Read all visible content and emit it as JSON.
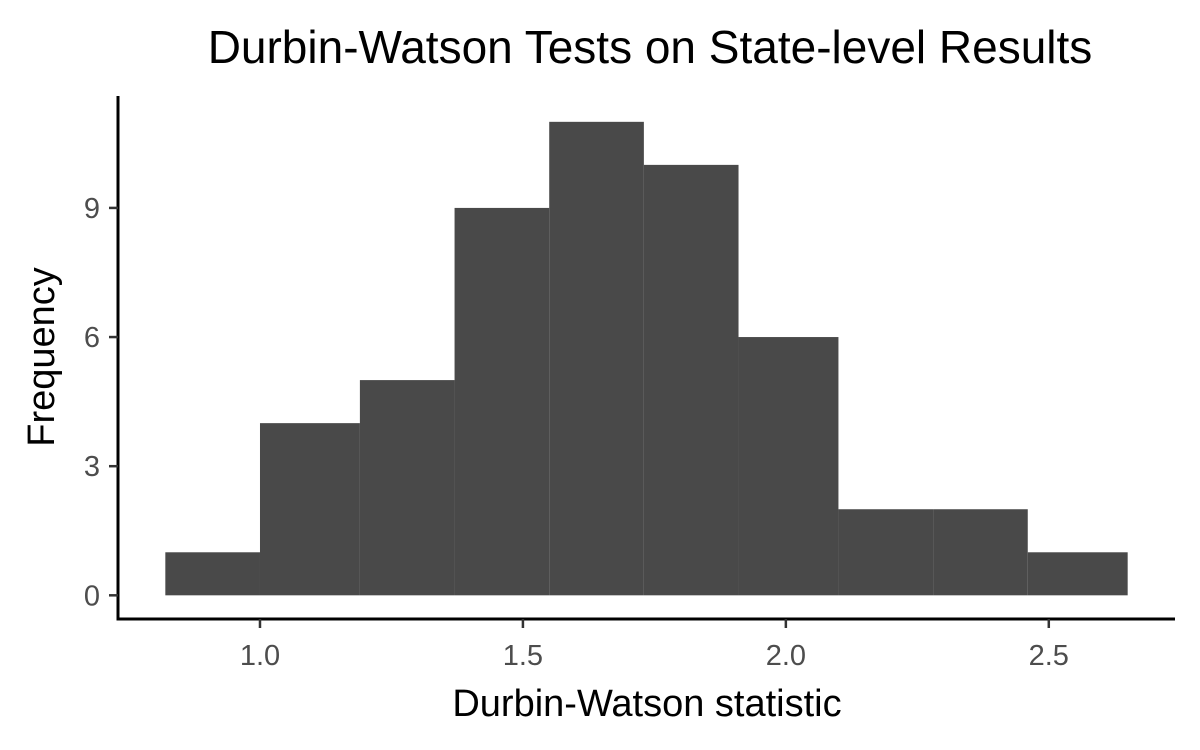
{
  "chart_data": {
    "type": "bar",
    "subtype": "histogram",
    "title": "Durbin-Watson Tests on State-level Results",
    "xlabel": "Durbin-Watson statistic",
    "ylabel": "Frequency",
    "bins": [
      {
        "x0": 0.82,
        "x1": 1.0,
        "count": 1
      },
      {
        "x0": 1.0,
        "x1": 1.19,
        "count": 4
      },
      {
        "x0": 1.19,
        "x1": 1.37,
        "count": 5
      },
      {
        "x0": 1.37,
        "x1": 1.55,
        "count": 9
      },
      {
        "x0": 1.55,
        "x1": 1.73,
        "count": 11
      },
      {
        "x0": 1.73,
        "x1": 1.91,
        "count": 10
      },
      {
        "x0": 1.91,
        "x1": 2.1,
        "count": 6
      },
      {
        "x0": 2.1,
        "x1": 2.28,
        "count": 2
      },
      {
        "x0": 2.28,
        "x1": 2.46,
        "count": 2
      },
      {
        "x0": 2.46,
        "x1": 2.65,
        "count": 1
      }
    ],
    "xlim": [
      0.73,
      2.74
    ],
    "ylim": [
      -0.55,
      11.6
    ],
    "x_ticks": [
      1.0,
      1.5,
      2.0,
      2.5
    ],
    "x_tick_labels": [
      "1.0",
      "1.5",
      "2.0",
      "2.5"
    ],
    "y_ticks": [
      0,
      3,
      6,
      9
    ],
    "y_tick_labels": [
      "0",
      "3",
      "6",
      "9"
    ],
    "bar_color": "#494949",
    "axis_color": "#000000",
    "tick_label_color": "#4d4d4d",
    "grid": false,
    "legend": "none"
  }
}
